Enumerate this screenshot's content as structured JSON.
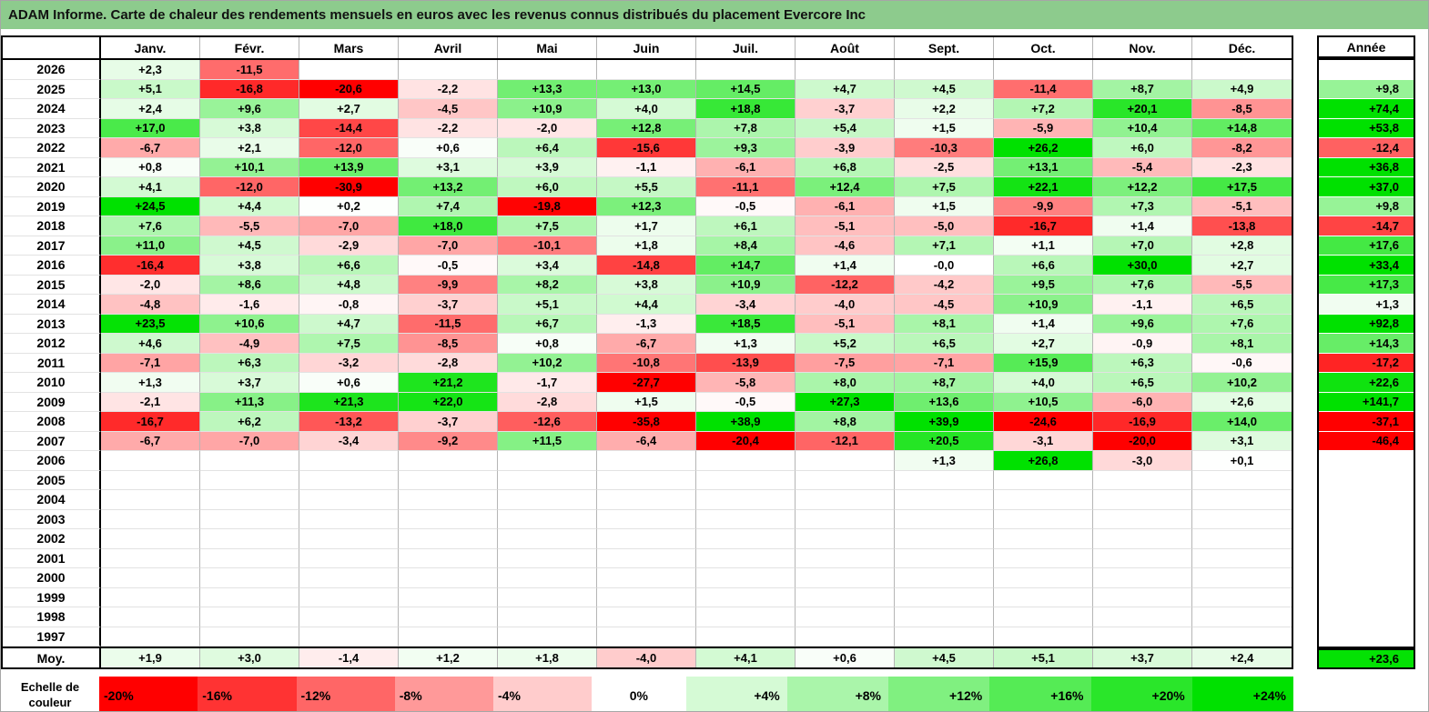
{
  "title": "ADAM Informe. Carte de chaleur des rendements mensuels en euros avec les revenus connus distribués du placement Evercore Inc",
  "colors": {
    "title_bg": "#8DCB8D",
    "max_red": "#FF0000",
    "max_green": "#00E100",
    "zero": "#FFFFFF"
  },
  "chart_data": {
    "type": "heatmap",
    "title": "ADAM Informe. Carte de chaleur des rendements mensuels en euros avec les revenus connus distribués du placement Evercore Inc",
    "columns": [
      "Janv.",
      "Févr.",
      "Mars",
      "Avril",
      "Mai",
      "Juin",
      "Juil.",
      "Août",
      "Sept.",
      "Oct.",
      "Nov.",
      "Déc."
    ],
    "year_header": "Année",
    "rows": [
      {
        "year": "2026",
        "values": [
          "+2,3",
          "-11,5",
          "",
          "",
          "",
          "",
          "",
          "",
          "",
          "",
          "",
          ""
        ],
        "annee": ""
      },
      {
        "year": "2025",
        "values": [
          "+5,1",
          "-16,8",
          "-20,6",
          "-2,2",
          "+13,3",
          "+13,0",
          "+14,5",
          "+4,7",
          "+4,5",
          "-11,4",
          "+8,7",
          "+4,9"
        ],
        "annee": "+9,8"
      },
      {
        "year": "2024",
        "values": [
          "+2,4",
          "+9,6",
          "+2,7",
          "-4,5",
          "+10,9",
          "+4,0",
          "+18,8",
          "-3,7",
          "+2,2",
          "+7,2",
          "+20,1",
          "-8,5"
        ],
        "annee": "+74,4"
      },
      {
        "year": "2023",
        "values": [
          "+17,0",
          "+3,8",
          "-14,4",
          "-2,2",
          "-2,0",
          "+12,8",
          "+7,8",
          "+5,4",
          "+1,5",
          "-5,9",
          "+10,4",
          "+14,8"
        ],
        "annee": "+53,8"
      },
      {
        "year": "2022",
        "values": [
          "-6,7",
          "+2,1",
          "-12,0",
          "+0,6",
          "+6,4",
          "-15,6",
          "+9,3",
          "-3,9",
          "-10,3",
          "+26,2",
          "+6,0",
          "-8,2"
        ],
        "annee": "-12,4"
      },
      {
        "year": "2021",
        "values": [
          "+0,8",
          "+10,1",
          "+13,9",
          "+3,1",
          "+3,9",
          "-1,1",
          "-6,1",
          "+6,8",
          "-2,5",
          "+13,1",
          "-5,4",
          "-2,3"
        ],
        "annee": "+36,8"
      },
      {
        "year": "2020",
        "values": [
          "+4,1",
          "-12,0",
          "-30,9",
          "+13,2",
          "+6,0",
          "+5,5",
          "-11,1",
          "+12,4",
          "+7,5",
          "+22,1",
          "+12,2",
          "+17,5"
        ],
        "annee": "+37,0"
      },
      {
        "year": "2019",
        "values": [
          "+24,5",
          "+4,4",
          "+0,2",
          "+7,4",
          "-19,8",
          "+12,3",
          "-0,5",
          "-6,1",
          "+1,5",
          "-9,9",
          "+7,3",
          "-5,1"
        ],
        "annee": "+9,8"
      },
      {
        "year": "2018",
        "values": [
          "+7,6",
          "-5,5",
          "-7,0",
          "+18,0",
          "+7,5",
          "+1,7",
          "+6,1",
          "-5,1",
          "-5,0",
          "-16,7",
          "+1,4",
          "-13,8"
        ],
        "annee": "-14,7"
      },
      {
        "year": "2017",
        "values": [
          "+11,0",
          "+4,5",
          "-2,9",
          "-7,0",
          "-10,1",
          "+1,8",
          "+8,4",
          "-4,6",
          "+7,1",
          "+1,1",
          "+7,0",
          "+2,8"
        ],
        "annee": "+17,6"
      },
      {
        "year": "2016",
        "values": [
          "-16,4",
          "+3,8",
          "+6,6",
          "-0,5",
          "+3,4",
          "-14,8",
          "+14,7",
          "+1,4",
          "-0,0",
          "+6,6",
          "+30,0",
          "+2,7"
        ],
        "annee": "+33,4"
      },
      {
        "year": "2015",
        "values": [
          "-2,0",
          "+8,6",
          "+4,8",
          "-9,9",
          "+8,2",
          "+3,8",
          "+10,9",
          "-12,2",
          "-4,2",
          "+9,5",
          "+7,6",
          "-5,5"
        ],
        "annee": "+17,3"
      },
      {
        "year": "2014",
        "values": [
          "-4,8",
          "-1,6",
          "-0,8",
          "-3,7",
          "+5,1",
          "+4,4",
          "-3,4",
          "-4,0",
          "-4,5",
          "+10,9",
          "-1,1",
          "+6,5"
        ],
        "annee": "+1,3"
      },
      {
        "year": "2013",
        "values": [
          "+23,5",
          "+10,6",
          "+4,7",
          "-11,5",
          "+6,7",
          "-1,3",
          "+18,5",
          "-5,1",
          "+8,1",
          "+1,4",
          "+9,6",
          "+7,6"
        ],
        "annee": "+92,8"
      },
      {
        "year": "2012",
        "values": [
          "+4,6",
          "-4,9",
          "+7,5",
          "-8,5",
          "+0,8",
          "-6,7",
          "+1,3",
          "+5,2",
          "+6,5",
          "+2,7",
          "-0,9",
          "+8,1"
        ],
        "annee": "+14,3"
      },
      {
        "year": "2011",
        "values": [
          "-7,1",
          "+6,3",
          "-3,2",
          "-2,8",
          "+10,2",
          "-10,8",
          "-13,9",
          "-7,5",
          "-7,1",
          "+15,9",
          "+6,3",
          "-0,6"
        ],
        "annee": "-17,2"
      },
      {
        "year": "2010",
        "values": [
          "+1,3",
          "+3,7",
          "+0,6",
          "+21,2",
          "-1,7",
          "-27,7",
          "-5,8",
          "+8,0",
          "+8,7",
          "+4,0",
          "+6,5",
          "+10,2"
        ],
        "annee": "+22,6"
      },
      {
        "year": "2009",
        "values": [
          "-2,1",
          "+11,3",
          "+21,3",
          "+22,0",
          "-2,8",
          "+1,5",
          "-0,5",
          "+27,3",
          "+13,6",
          "+10,5",
          "-6,0",
          "+2,6"
        ],
        "annee": "+141,7"
      },
      {
        "year": "2008",
        "values": [
          "-16,7",
          "+6,2",
          "-13,2",
          "-3,7",
          "-12,6",
          "-35,8",
          "+38,9",
          "+8,8",
          "+39,9",
          "-24,6",
          "-16,9",
          "+14,0"
        ],
        "annee": "-37,1"
      },
      {
        "year": "2007",
        "values": [
          "-6,7",
          "-7,0",
          "-3,4",
          "-9,2",
          "+11,5",
          "-6,4",
          "-20,4",
          "-12,1",
          "+20,5",
          "-3,1",
          "-20,0",
          "+3,1"
        ],
        "annee": "-46,4"
      },
      {
        "year": "2006",
        "values": [
          "",
          "",
          "",
          "",
          "",
          "",
          "",
          "",
          "+1,3",
          "+26,8",
          "-3,0",
          "+0,1"
        ],
        "annee": ""
      },
      {
        "year": "2005",
        "values": [
          "",
          "",
          "",
          "",
          "",
          "",
          "",
          "",
          "",
          "",
          "",
          ""
        ],
        "annee": ""
      },
      {
        "year": "2004",
        "values": [
          "",
          "",
          "",
          "",
          "",
          "",
          "",
          "",
          "",
          "",
          "",
          ""
        ],
        "annee": ""
      },
      {
        "year": "2003",
        "values": [
          "",
          "",
          "",
          "",
          "",
          "",
          "",
          "",
          "",
          "",
          "",
          ""
        ],
        "annee": ""
      },
      {
        "year": "2002",
        "values": [
          "",
          "",
          "",
          "",
          "",
          "",
          "",
          "",
          "",
          "",
          "",
          ""
        ],
        "annee": ""
      },
      {
        "year": "2001",
        "values": [
          "",
          "",
          "",
          "",
          "",
          "",
          "",
          "",
          "",
          "",
          "",
          ""
        ],
        "annee": ""
      },
      {
        "year": "2000",
        "values": [
          "",
          "",
          "",
          "",
          "",
          "",
          "",
          "",
          "",
          "",
          "",
          ""
        ],
        "annee": ""
      },
      {
        "year": "1999",
        "values": [
          "",
          "",
          "",
          "",
          "",
          "",
          "",
          "",
          "",
          "",
          "",
          ""
        ],
        "annee": ""
      },
      {
        "year": "1998",
        "values": [
          "",
          "",
          "",
          "",
          "",
          "",
          "",
          "",
          "",
          "",
          "",
          ""
        ],
        "annee": ""
      },
      {
        "year": "1997",
        "values": [
          "",
          "",
          "",
          "",
          "",
          "",
          "",
          "",
          "",
          "",
          "",
          ""
        ],
        "annee": ""
      }
    ],
    "average": {
      "label": "Moy.",
      "values": [
        "+1,9",
        "+3,0",
        "-1,4",
        "+1,2",
        "+1,8",
        "-4,0",
        "+4,1",
        "+0,6",
        "+4,5",
        "+5,1",
        "+3,7",
        "+2,4"
      ],
      "annee": "+23,6"
    },
    "color_scale": {
      "label": "Echelle de couleur",
      "ticks": [
        "-20%",
        "-16%",
        "-12%",
        "-8%",
        "-4%",
        "0%",
        "+4%",
        "+8%",
        "+12%",
        "+16%",
        "+20%",
        "+24%"
      ],
      "min_pct": -20,
      "max_pct": 24,
      "neg_color": "#FF0000",
      "pos_color": "#00E100",
      "zero_color": "#FFFFFF"
    }
  }
}
